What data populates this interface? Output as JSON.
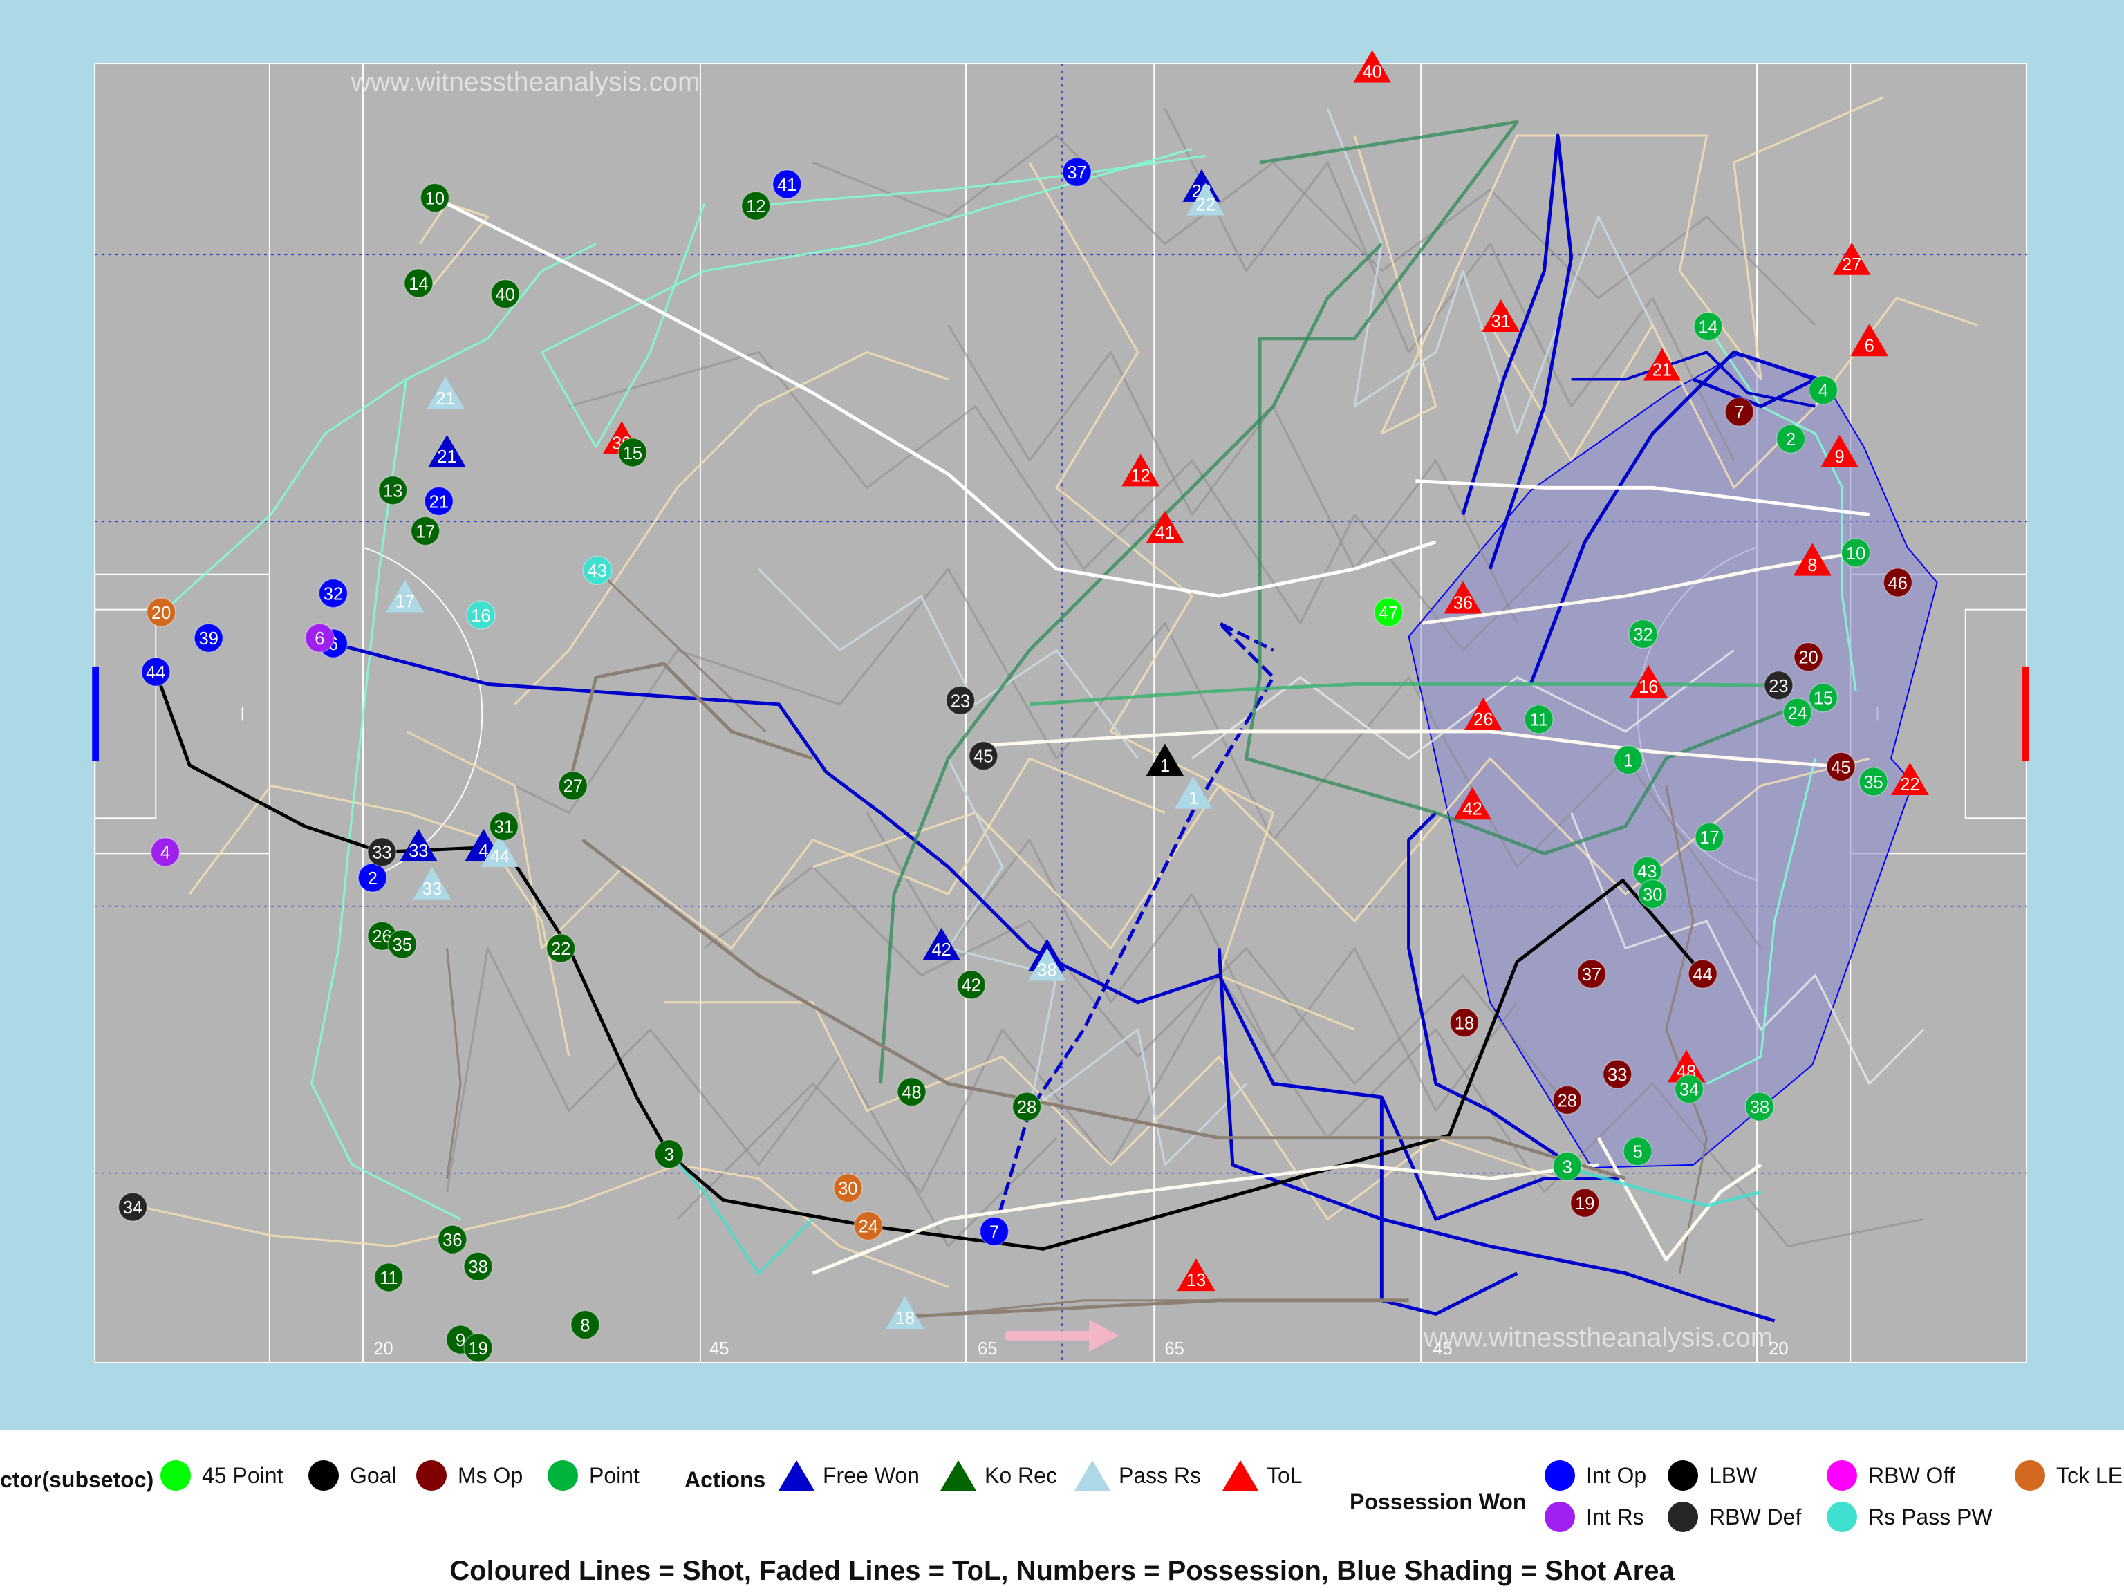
{
  "chart_data": {
    "type": "scatter",
    "watermark": "www.witnesstheanalysis.com",
    "x_ticks": [
      "20",
      "45",
      "65",
      "65",
      "45",
      "20"
    ],
    "caption": "Coloured Lines = Shot, Faded Lines = ToL, Numbers = Possession, Blue Shading = Shot Area",
    "legend": {
      "sector_title": "ctor(subsetoc)",
      "sector": [
        {
          "label": "45 Point",
          "color": "#00ff00"
        },
        {
          "label": "Goal",
          "color": "#000000"
        },
        {
          "label": "Ms Op",
          "color": "#7f0000"
        },
        {
          "label": "Point",
          "color": "#00b33c"
        }
      ],
      "actions_title": "Actions",
      "actions": [
        {
          "label": "Free Won",
          "color": "#0000cd"
        },
        {
          "label": "Ko Rec",
          "color": "#006400"
        },
        {
          "label": "Pass Rs",
          "color": "#add8e6"
        },
        {
          "label": "ToL",
          "color": "#ff0000"
        }
      ],
      "possession_title": "Possession Won",
      "possession": [
        {
          "label": "Int Op",
          "color": "#0000ff"
        },
        {
          "label": "LBW",
          "color": "#000000"
        },
        {
          "label": "RBW Off",
          "color": "#ff00ff"
        },
        {
          "label": "Tck LE",
          "color": "#d2691e"
        },
        {
          "label": "Int Rs",
          "color": "#a020f0"
        },
        {
          "label": "RBW Def",
          "color": "#262626"
        },
        {
          "label": "Rs Pass PW",
          "color": "#40e0d0"
        }
      ]
    },
    "points": [
      {
        "n": "40",
        "k": "tol",
        "x": 1013,
        "y": 52
      },
      {
        "n": "27",
        "k": "tol",
        "x": 1367,
        "y": 194
      },
      {
        "n": "6",
        "k": "tol",
        "x": 1380,
        "y": 254
      },
      {
        "n": "31",
        "k": "tol",
        "x": 1108,
        "y": 236
      },
      {
        "n": "21",
        "k": "tol",
        "x": 1227,
        "y": 272
      },
      {
        "n": "9",
        "k": "tol",
        "x": 1358,
        "y": 336
      },
      {
        "n": "8",
        "k": "tol",
        "x": 1338,
        "y": 416
      },
      {
        "n": "12",
        "k": "tol",
        "x": 842,
        "y": 350
      },
      {
        "n": "41",
        "k": "tol",
        "x": 860,
        "y": 392
      },
      {
        "n": "39",
        "k": "tol",
        "x": 459,
        "y": 326
      },
      {
        "n": "36",
        "k": "tol",
        "x": 1080,
        "y": 444
      },
      {
        "n": "26",
        "k": "tol",
        "x": 1095,
        "y": 530
      },
      {
        "n": "16",
        "k": "tol",
        "x": 1217,
        "y": 506
      },
      {
        "n": "42",
        "k": "tol",
        "x": 1087,
        "y": 596
      },
      {
        "n": "22",
        "k": "tol",
        "x": 1410,
        "y": 578
      },
      {
        "n": "48",
        "k": "tol",
        "x": 1245,
        "y": 790
      },
      {
        "n": "13",
        "k": "tol",
        "x": 883,
        "y": 944
      },
      {
        "n": "22",
        "k": "fw",
        "x": 887,
        "y": 140
      },
      {
        "n": "21",
        "k": "fw",
        "x": 330,
        "y": 336
      },
      {
        "n": "33",
        "k": "fw",
        "x": 309,
        "y": 627
      },
      {
        "n": "4",
        "k": "fw",
        "x": 357,
        "y": 627
      },
      {
        "n": "42",
        "k": "fw",
        "x": 695,
        "y": 700
      },
      {
        "n": "",
        "k": "fw",
        "x": 773,
        "y": 708
      },
      {
        "n": "1",
        "k": "kor",
        "x": 860,
        "y": 564
      },
      {
        "n": "22",
        "k": "prs",
        "x": 890,
        "y": 150
      },
      {
        "n": "17",
        "k": "prs",
        "x": 299,
        "y": 443
      },
      {
        "n": "33",
        "k": "prs",
        "x": 319,
        "y": 655
      },
      {
        "n": "44",
        "k": "prs",
        "x": 369,
        "y": 631
      },
      {
        "n": "1",
        "k": "prs",
        "x": 881,
        "y": 588
      },
      {
        "n": "38",
        "k": "prs",
        "x": 773,
        "y": 715
      },
      {
        "n": "18",
        "k": "prs",
        "x": 668,
        "y": 972
      },
      {
        "n": "21",
        "k": "prs",
        "x": 329,
        "y": 293
      },
      {
        "n": "43",
        "k": "rs",
        "x": 441,
        "y": 421
      },
      {
        "n": "16",
        "k": "rs",
        "x": 355,
        "y": 454
      },
      {
        "n": "47",
        "k": "p45",
        "x": 1025,
        "y": 452
      },
      {
        "n": "10",
        "k": "ko",
        "x": 321,
        "y": 146
      },
      {
        "n": "14",
        "k": "ko",
        "x": 309,
        "y": 209
      },
      {
        "n": "40",
        "k": "ko",
        "x": 373,
        "y": 217
      },
      {
        "n": "12",
        "k": "ko",
        "x": 558,
        "y": 152
      },
      {
        "n": "13",
        "k": "ko",
        "x": 290,
        "y": 362
      },
      {
        "n": "17",
        "k": "ko",
        "x": 314,
        "y": 392
      },
      {
        "n": "15",
        "k": "ko",
        "x": 467,
        "y": 334
      },
      {
        "n": "27",
        "k": "ko",
        "x": 423,
        "y": 580
      },
      {
        "n": "31",
        "k": "ko",
        "x": 372,
        "y": 610
      },
      {
        "n": "22",
        "k": "ko",
        "x": 414,
        "y": 700
      },
      {
        "n": "26",
        "k": "ko",
        "x": 282,
        "y": 691
      },
      {
        "n": "35",
        "k": "ko",
        "x": 297,
        "y": 697
      },
      {
        "n": "3",
        "k": "ko",
        "x": 494,
        "y": 852
      },
      {
        "n": "36",
        "k": "ko",
        "x": 334,
        "y": 915
      },
      {
        "n": "38",
        "k": "ko",
        "x": 353,
        "y": 935
      },
      {
        "n": "11",
        "k": "ko",
        "x": 287,
        "y": 943
      },
      {
        "n": "8",
        "k": "ko",
        "x": 432,
        "y": 978
      },
      {
        "n": "9",
        "k": "ko",
        "x": 340,
        "y": 989
      },
      {
        "n": "19",
        "k": "ko",
        "x": 353,
        "y": 995
      },
      {
        "n": "42",
        "k": "ko",
        "x": 717,
        "y": 727
      },
      {
        "n": "48",
        "k": "ko",
        "x": 673,
        "y": 806
      },
      {
        "n": "28",
        "k": "ko",
        "x": 758,
        "y": 817
      },
      {
        "n": "41",
        "k": "io",
        "x": 581,
        "y": 136
      },
      {
        "n": "37",
        "k": "io",
        "x": 795,
        "y": 127
      },
      {
        "n": "21",
        "k": "io",
        "x": 324,
        "y": 370
      },
      {
        "n": "32",
        "k": "io",
        "x": 246,
        "y": 438
      },
      {
        "n": "39",
        "k": "io",
        "x": 154,
        "y": 471
      },
      {
        "n": "44",
        "k": "io",
        "x": 115,
        "y": 496
      },
      {
        "n": "6",
        "k": "io",
        "x": 246,
        "y": 475
      },
      {
        "n": "2",
        "k": "io",
        "x": 275,
        "y": 648
      },
      {
        "n": "7",
        "k": "io",
        "x": 734,
        "y": 909
      },
      {
        "n": "6",
        "k": "ir",
        "x": 236,
        "y": 471
      },
      {
        "n": "4",
        "k": "ir",
        "x": 122,
        "y": 629
      },
      {
        "n": "20",
        "k": "tck",
        "x": 119,
        "y": 452
      },
      {
        "n": "30",
        "k": "tck",
        "x": 626,
        "y": 877
      },
      {
        "n": "24",
        "k": "tck",
        "x": 641,
        "y": 905
      },
      {
        "n": "34",
        "k": "rbwd",
        "x": 98,
        "y": 891
      },
      {
        "n": "33",
        "k": "rbwd",
        "x": 282,
        "y": 629
      },
      {
        "n": "23",
        "k": "rbwd",
        "x": 709,
        "y": 517
      },
      {
        "n": "45",
        "k": "rbwd",
        "x": 726,
        "y": 558
      },
      {
        "n": "23",
        "k": "rbwd",
        "x": 1313,
        "y": 506
      },
      {
        "n": "7",
        "k": "ms",
        "x": 1284,
        "y": 304
      },
      {
        "n": "46",
        "k": "ms",
        "x": 1401,
        "y": 430
      },
      {
        "n": "20",
        "k": "ms",
        "x": 1335,
        "y": 485
      },
      {
        "n": "45",
        "k": "ms",
        "x": 1359,
        "y": 566
      },
      {
        "n": "37",
        "k": "ms",
        "x": 1175,
        "y": 719
      },
      {
        "n": "44",
        "k": "ms",
        "x": 1257,
        "y": 719
      },
      {
        "n": "18",
        "k": "ms",
        "x": 1081,
        "y": 755
      },
      {
        "n": "33",
        "k": "ms",
        "x": 1194,
        "y": 793
      },
      {
        "n": "28",
        "k": "ms",
        "x": 1157,
        "y": 812
      },
      {
        "n": "19",
        "k": "ms",
        "x": 1170,
        "y": 888
      },
      {
        "n": "14",
        "k": "pt",
        "x": 1261,
        "y": 241
      },
      {
        "n": "4",
        "k": "pt",
        "x": 1346,
        "y": 288
      },
      {
        "n": "2",
        "k": "pt",
        "x": 1322,
        "y": 324
      },
      {
        "n": "10",
        "k": "pt",
        "x": 1370,
        "y": 408
      },
      {
        "n": "32",
        "k": "pt",
        "x": 1213,
        "y": 468
      },
      {
        "n": "11",
        "k": "pt",
        "x": 1136,
        "y": 531
      },
      {
        "n": "24",
        "k": "pt",
        "x": 1327,
        "y": 526
      },
      {
        "n": "15",
        "k": "pt",
        "x": 1346,
        "y": 515
      },
      {
        "n": "1",
        "k": "pt",
        "x": 1202,
        "y": 561
      },
      {
        "n": "35",
        "k": "pt",
        "x": 1383,
        "y": 577
      },
      {
        "n": "17",
        "k": "pt",
        "x": 1262,
        "y": 618
      },
      {
        "n": "43",
        "k": "pt",
        "x": 1216,
        "y": 643
      },
      {
        "n": "30",
        "k": "pt",
        "x": 1220,
        "y": 660
      },
      {
        "n": "34",
        "k": "pt",
        "x": 1247,
        "y": 804
      },
      {
        "n": "38",
        "k": "pt",
        "x": 1299,
        "y": 817
      },
      {
        "n": "5",
        "k": "pt",
        "x": 1209,
        "y": 850
      },
      {
        "n": "3",
        "k": "pt",
        "x": 1157,
        "y": 861
      }
    ]
  }
}
